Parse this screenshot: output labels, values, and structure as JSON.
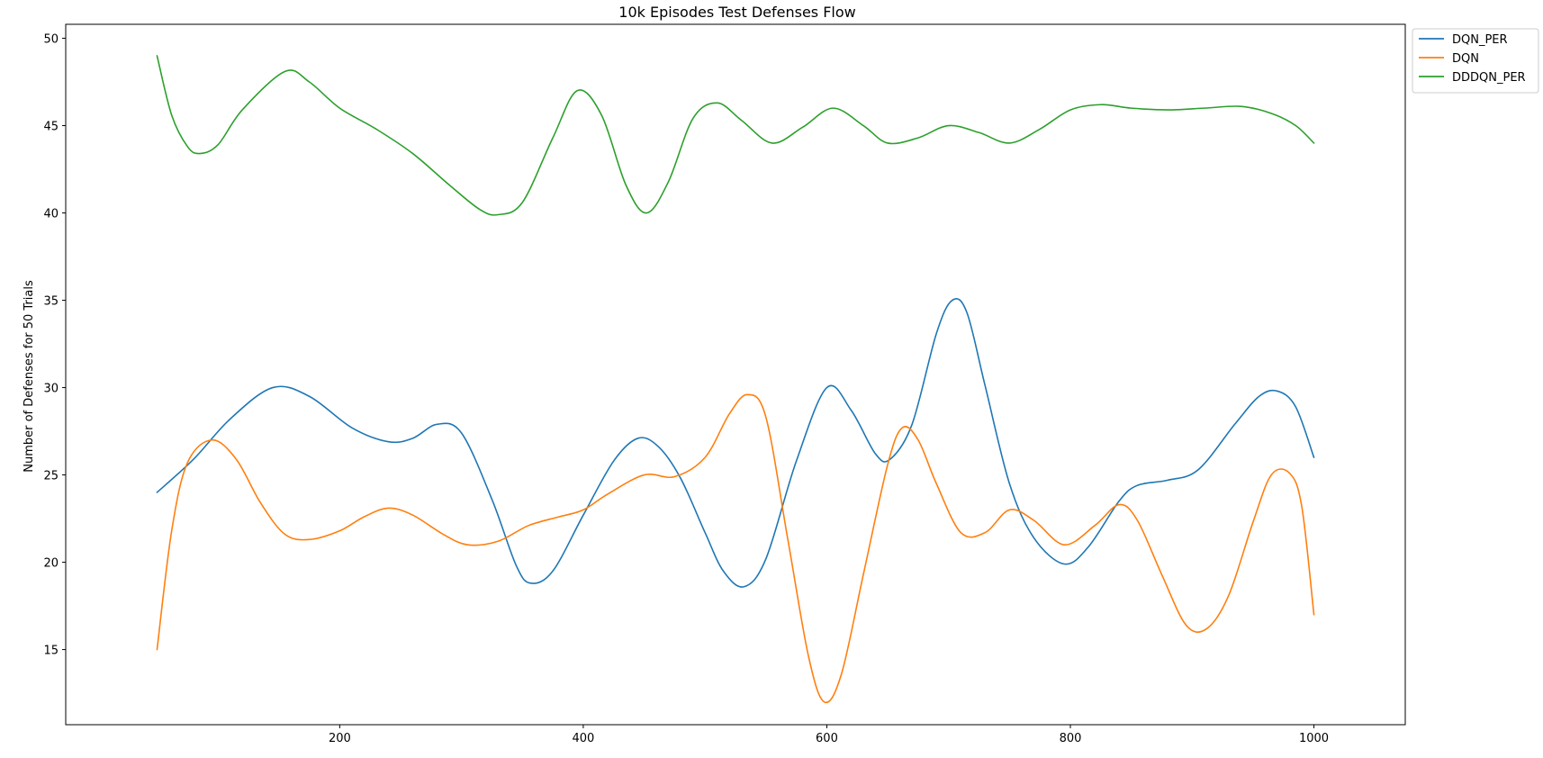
{
  "chart_data": {
    "type": "line",
    "title": "10k Episodes Test Defenses Flow",
    "xlabel": "",
    "ylabel": "Number of Defenses for 50 Trials",
    "xlim": [
      -25,
      1075
    ],
    "ylim": [
      10.7,
      50.8
    ],
    "xticks": [
      200,
      400,
      600,
      800,
      1000
    ],
    "yticks": [
      15,
      20,
      25,
      30,
      35,
      40,
      45,
      50
    ],
    "grid": false,
    "legend_position": "outside-top-right",
    "series": [
      {
        "name": "DQN_PER",
        "color": "#1f77b4",
        "x": [
          50,
          80,
          110,
          145,
          175,
          210,
          240,
          260,
          280,
          300,
          325,
          345,
          357,
          375,
          400,
          425,
          445,
          462,
          480,
          500,
          515,
          532,
          550,
          575,
          600,
          620,
          640,
          652,
          670,
          690,
          703,
          715,
          730,
          750,
          770,
          795,
          815,
          840,
          855,
          880,
          905,
          935,
          955,
          970,
          985,
          1000
        ],
        "y": [
          24,
          25.9,
          28.2,
          30,
          29.5,
          27.7,
          26.9,
          27.1,
          27.9,
          27.4,
          23.6,
          19.8,
          18.8,
          19.5,
          22.7,
          25.8,
          27.1,
          26.6,
          24.8,
          21.7,
          19.5,
          18.6,
          20.2,
          25.8,
          30,
          28.7,
          26.2,
          25.9,
          27.9,
          33.1,
          35,
          34.3,
          30.1,
          24.5,
          21.4,
          19.9,
          20.9,
          23.5,
          24.4,
          24.7,
          25.3,
          27.9,
          29.5,
          29.8,
          28.9,
          26
        ]
      },
      {
        "name": "DQN",
        "color": "#ff7f0e",
        "x": [
          50,
          62,
          75,
          95,
          115,
          135,
          155,
          175,
          200,
          220,
          240,
          260,
          285,
          305,
          330,
          355,
          380,
          400,
          420,
          450,
          475,
          500,
          520,
          535,
          550,
          568,
          585,
          598,
          612,
          630,
          650,
          662,
          675,
          690,
          710,
          730,
          750,
          770,
          795,
          820,
          840,
          855,
          875,
          895,
          912,
          930,
          950,
          965,
          980,
          990,
          1000
        ],
        "y": [
          15,
          21.8,
          25.7,
          27,
          25.9,
          23.4,
          21.6,
          21.3,
          21.8,
          22.6,
          23.1,
          22.7,
          21.6,
          21,
          21.2,
          22.1,
          22.6,
          23,
          23.9,
          25,
          24.9,
          26,
          28.5,
          29.6,
          28.3,
          21.3,
          14.6,
          12,
          13.6,
          19.3,
          25.6,
          27.7,
          27,
          24.5,
          21.7,
          21.7,
          23,
          22.4,
          21,
          22.1,
          23.3,
          22.4,
          19.3,
          16.4,
          16.2,
          18.1,
          22.3,
          25,
          25.1,
          23.2,
          17
        ]
      },
      {
        "name": "DDDQN_PER",
        "color": "#2ca02c",
        "x": [
          50,
          62,
          75,
          85,
          100,
          120,
          155,
          175,
          200,
          230,
          260,
          290,
          315,
          330,
          350,
          375,
          395,
          415,
          435,
          452,
          470,
          490,
          510,
          530,
          555,
          580,
          605,
          630,
          650,
          675,
          700,
          725,
          750,
          775,
          800,
          825,
          850,
          880,
          910,
          940,
          965,
          985,
          1000
        ],
        "y": [
          49,
          45.6,
          43.8,
          43.4,
          43.9,
          45.9,
          48.1,
          47.5,
          46,
          44.8,
          43.4,
          41.6,
          40.2,
          39.9,
          40.6,
          44.3,
          47,
          45.6,
          41.6,
          40,
          41.8,
          45.4,
          46.3,
          45.3,
          44,
          44.9,
          46,
          45,
          44,
          44.3,
          45,
          44.6,
          44,
          44.8,
          45.9,
          46.2,
          46,
          45.9,
          46,
          46.1,
          45.7,
          45,
          44
        ]
      }
    ]
  }
}
